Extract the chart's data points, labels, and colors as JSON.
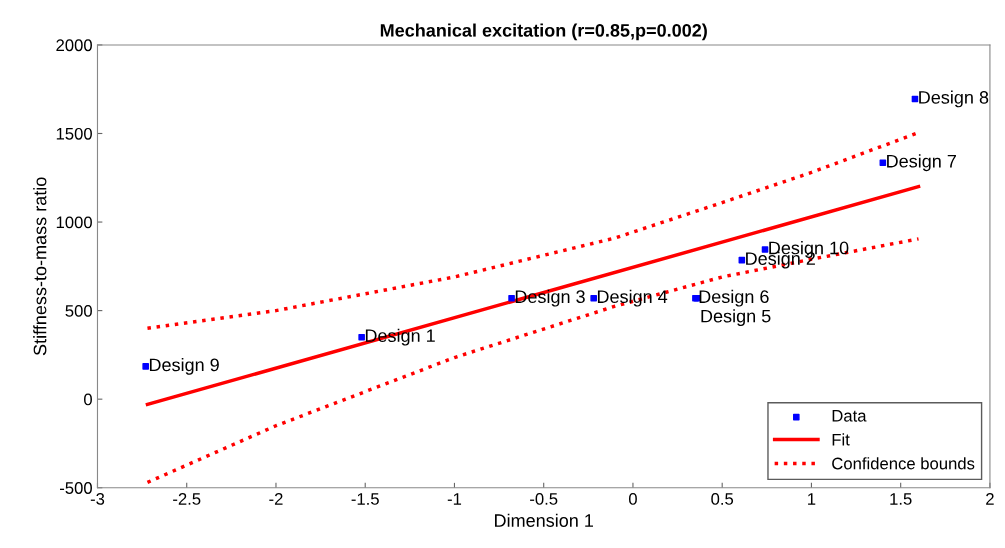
{
  "chart_data": {
    "type": "scatter",
    "title": "Mechanical excitation (r=0.85,p=0.002)",
    "xlabel": "Dimension 1",
    "ylabel": "Stiffness-to-mass ratio",
    "xlim": [
      -3,
      2
    ],
    "xticks": [
      -3,
      -2.5,
      -2,
      -1.5,
      -1,
      -0.5,
      0,
      0.5,
      1,
      1.5,
      2
    ],
    "ylim": [
      -500,
      2000
    ],
    "yticks": [
      -500,
      0,
      500,
      1000,
      1500,
      2000
    ],
    "grid": false,
    "legend": "bottom right",
    "series": [
      {
        "name": "Data",
        "marker": "square",
        "color": "#0000ff",
        "x": [
          -2.73,
          -1.52,
          -0.68,
          -0.22,
          0.35,
          0.36,
          0.61,
          0.74,
          1.4,
          1.58
        ],
        "values": [
          185,
          350,
          570,
          570,
          570,
          570,
          785,
          845,
          1335,
          1695
        ]
      },
      {
        "name": "Fit",
        "type": "line",
        "line_style": "solid",
        "color": "#ff0000",
        "x": [
          -2.72,
          1.6
        ],
        "values": [
          -30,
          1200
        ]
      },
      {
        "name": "Confidence bounds",
        "type": "line",
        "line_style": "dotted",
        "color": "#ff0000",
        "x": [
          -2.72,
          -2,
          -1,
          -0.1,
          0.5,
          1,
          1.6
        ],
        "values": [
          400,
          500,
          690,
          910,
          1110,
          1280,
          1505
        ]
      },
      {
        "type": "line",
        "line_style": "dotted",
        "color": "#ff0000",
        "x": [
          -2.72,
          -2,
          -1,
          -0.1,
          0.5,
          1,
          1.6
        ],
        "values": [
          -470,
          -150,
          235,
          525,
          690,
          790,
          905
        ]
      }
    ],
    "annotations": [
      {
        "text": "Design 9",
        "x": -2.73,
        "y": 185
      },
      {
        "text": "Design 1",
        "x": -1.52,
        "y": 350
      },
      {
        "text": "Design 3",
        "x": -0.68,
        "y": 570
      },
      {
        "text": "Design 4",
        "x": -0.22,
        "y": 570
      },
      {
        "text": "Design 6",
        "x": 0.35,
        "y": 570
      },
      {
        "text": "Design 5",
        "x": 0.36,
        "y": 570
      },
      {
        "text": "Design 2",
        "x": 0.61,
        "y": 785
      },
      {
        "text": "Design 10",
        "x": 0.74,
        "y": 845
      },
      {
        "text": "Design 7",
        "x": 1.4,
        "y": 1335
      },
      {
        "text": "Design 8",
        "x": 1.58,
        "y": 1695
      }
    ]
  }
}
